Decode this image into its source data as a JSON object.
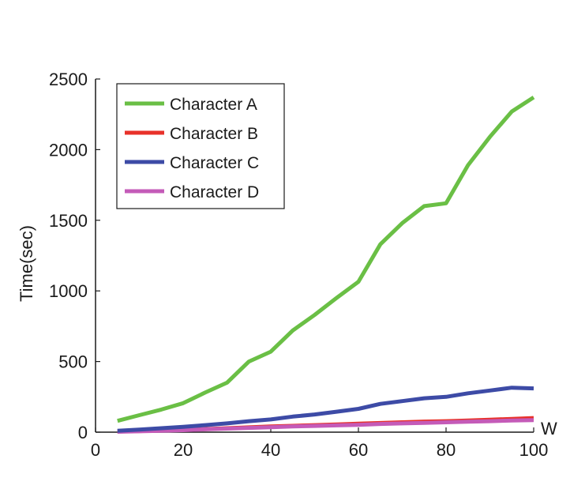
{
  "chart_data": {
    "type": "line",
    "title": "",
    "xlabel": "W",
    "ylabel": "Time(sec)",
    "xlim": [
      0,
      100
    ],
    "ylim": [
      0,
      2500
    ],
    "xticks": [
      0,
      20,
      40,
      60,
      80,
      100
    ],
    "yticks": [
      0,
      500,
      1000,
      1500,
      2000,
      2500
    ],
    "grid": false,
    "legend_position": "top-left",
    "x": [
      5,
      10,
      15,
      20,
      25,
      30,
      35,
      40,
      45,
      50,
      55,
      60,
      65,
      70,
      75,
      80,
      85,
      90,
      95,
      100
    ],
    "series": [
      {
        "name": "Character A",
        "color": "#6abf45",
        "values": [
          80,
          120,
          160,
          205,
          280,
          350,
          500,
          570,
          720,
          830,
          950,
          1065,
          1330,
          1480,
          1600,
          1620,
          1890,
          2090,
          2270,
          2370
        ]
      },
      {
        "name": "Character B",
        "color": "#e8312a",
        "values": [
          5,
          8,
          12,
          16,
          22,
          28,
          34,
          40,
          45,
          50,
          55,
          60,
          65,
          70,
          75,
          78,
          82,
          88,
          94,
          100
        ]
      },
      {
        "name": "Character C",
        "color": "#3d4ba6",
        "values": [
          10,
          18,
          28,
          38,
          50,
          62,
          78,
          90,
          110,
          125,
          145,
          165,
          200,
          220,
          240,
          250,
          275,
          295,
          315,
          310
        ]
      },
      {
        "name": "Character D",
        "color": "#c45bb8",
        "values": [
          3,
          6,
          10,
          14,
          20,
          25,
          30,
          35,
          40,
          44,
          48,
          52,
          58,
          62,
          66,
          70,
          74,
          78,
          82,
          85
        ]
      }
    ]
  }
}
